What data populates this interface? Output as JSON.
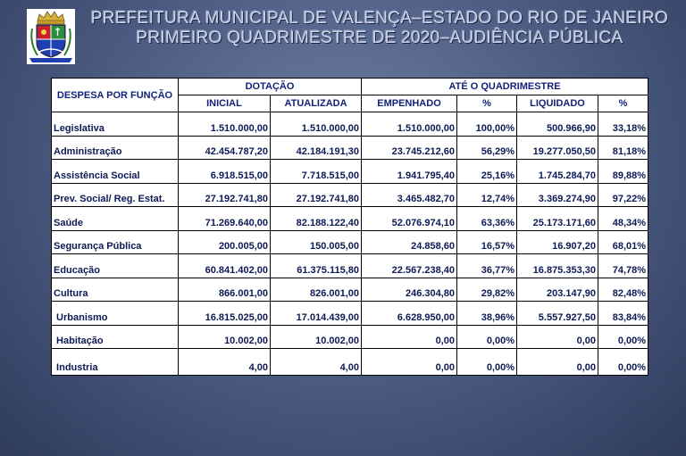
{
  "header": {
    "title_line1": "PREFEITURA MUNICIPAL DE VALENÇA–ESTADO DO RIO DE JANEIRO",
    "title_line2": "PRIMEIRO QUADRIMESTRE DE 2020–AUDIÊNCIA PÚBLICA"
  },
  "table": {
    "col_function": "DESPESA POR FUNÇÃO",
    "group_dotacao": "DOTAÇÃO",
    "group_quadrimestre": "ATÉ O QUADRIMESTRE",
    "col_inicial": "INICIAL",
    "col_atualizada": "ATUALIZADA",
    "col_empenhado": "EMPENHADO",
    "col_pct1": "%",
    "col_liquidado": "LIQUIDADO",
    "col_pct2": "%",
    "rows": [
      {
        "funcao": "Legislativa",
        "inicial": "1.510.000,00",
        "atualizada": "1.510.000,00",
        "empenhado": "1.510.000,00",
        "pct1": "100,00%",
        "liquidado": "500.966,90",
        "pct2": "33,18%"
      },
      {
        "funcao": "Administração",
        "inicial": "42.454.787,20",
        "atualizada": "42.184.191,30",
        "empenhado": "23.745.212,60",
        "pct1": "56,29%",
        "liquidado": "19.277.050,50",
        "pct2": "81,18%"
      },
      {
        "funcao": "Assistência Social",
        "inicial": "6.918.515,00",
        "atualizada": "7.718.515,00",
        "empenhado": "1.941.795,40",
        "pct1": "25,16%",
        "liquidado": "1.745.284,70",
        "pct2": "89,88%"
      },
      {
        "funcao": "Prev. Social/ Reg. Estat.",
        "inicial": "27.192.741,80",
        "atualizada": "27.192.741,80",
        "empenhado": "3.465.482,70",
        "pct1": "12,74%",
        "liquidado": "3.369.274,90",
        "pct2": "97,22%"
      },
      {
        "funcao": "Saúde",
        "inicial": "71.269.640,00",
        "atualizada": "82.188.122,40",
        "empenhado": "52.076.974,10",
        "pct1": "63,36%",
        "liquidado": "25.173.171,60",
        "pct2": "48,34%"
      },
      {
        "funcao": "Segurança Pública",
        "inicial": "200.005,00",
        "atualizada": "150.005,00",
        "empenhado": "24.858,60",
        "pct1": "16,57%",
        "liquidado": "16.907,20",
        "pct2": "68,01%"
      },
      {
        "funcao": "Educação",
        "inicial": "60.841.402,00",
        "atualizada": "61.375.115,80",
        "empenhado": "22.567.238,40",
        "pct1": "36,77%",
        "liquidado": "16.875.353,30",
        "pct2": "74,78%"
      },
      {
        "funcao": "Cultura",
        "inicial": "866.001,00",
        "atualizada": "826.001,00",
        "empenhado": "246.304,80",
        "pct1": "29,82%",
        "liquidado": "203.147,90",
        "pct2": "82,48%"
      },
      {
        "funcao": " Urbanismo",
        "inicial": "16.815.025,00",
        "atualizada": "17.014.439,00",
        "empenhado": "6.628.950,00",
        "pct1": "38,96%",
        "liquidado": "5.557.927,50",
        "pct2": "83,84%"
      },
      {
        "funcao": " Habitação",
        "inicial": "10.002,00",
        "atualizada": "10.002,00",
        "empenhado": "0,00",
        "pct1": "0,00%",
        "liquidado": "0,00",
        "pct2": "0,00%"
      },
      {
        "funcao": " Industria",
        "inicial": "4,00",
        "atualizada": "4,00",
        "empenhado": "0,00",
        "pct1": "0,00%",
        "liquidado": "0,00",
        "pct2": "0,00%"
      }
    ]
  },
  "colors": {
    "background": "#4f5f86",
    "title_text": "#c9d2ea",
    "table_text": "#0d1a55"
  },
  "icons": [
    "coat-of-arms-icon"
  ]
}
